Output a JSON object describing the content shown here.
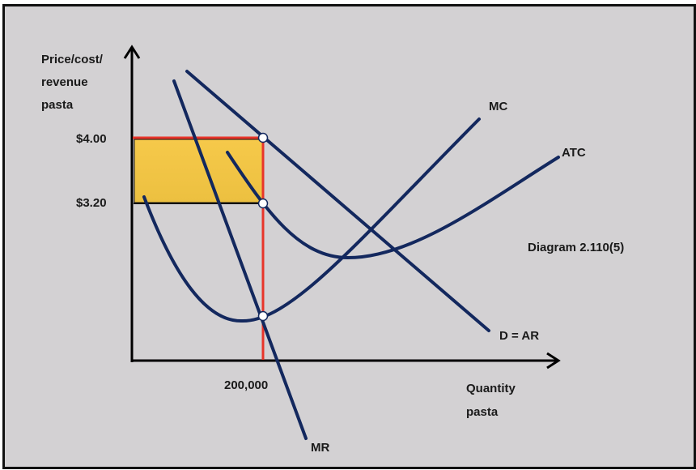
{
  "diagram": {
    "caption": "Diagram 2.110(5)",
    "y_axis_label": [
      "Price/cost/",
      "revenue",
      "pasta"
    ],
    "x_axis_label": [
      "Quantity",
      "pasta"
    ],
    "price_labels": {
      "p1": "$4.00",
      "p2": "$3.20"
    },
    "quantity_label": "200,000",
    "curves": {
      "mc": "MC",
      "atc": "ATC",
      "demand": "D = AR",
      "mr": "MR"
    },
    "colors": {
      "curve": "#13285e",
      "guide_lines": "#e8352a",
      "profit_area": "#f3c545",
      "background": "#d3d1d3"
    }
  }
}
